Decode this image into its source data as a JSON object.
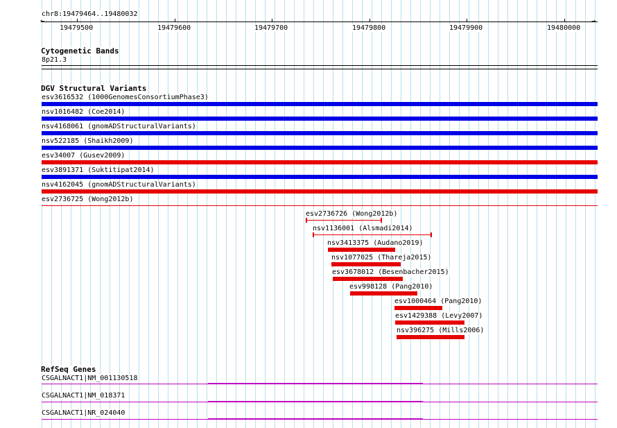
{
  "region": "chr8:19479464..19480032",
  "ruler": {
    "ticks": [
      "19479500",
      "19479600",
      "19479700",
      "19479800",
      "19479900",
      "19480000"
    ]
  },
  "cytoband": {
    "title": "Cytogenetic Bands",
    "band": "8p21.3"
  },
  "dgv": {
    "title": "DGV Structural Variants",
    "full_rows": [
      {
        "id": "esv3616532",
        "study": "(1000GenomesConsortiumPhase3)",
        "color": "#0000e6"
      },
      {
        "id": "nsv1016482",
        "study": "(Coe2014)",
        "color": "#0000e6"
      },
      {
        "id": "nsv4168061",
        "study": "(gnomADStructuralVariants)",
        "color": "#0000e6"
      },
      {
        "id": "nsv522185",
        "study": "(Shaikh2009)",
        "color": "#0000e6"
      },
      {
        "id": "esv34007",
        "study": "(Gusev2009)",
        "color": "#e60000"
      },
      {
        "id": "esv3891371",
        "study": "(Suktitipat2014)",
        "color": "#0000e6"
      },
      {
        "id": "nsv4162045",
        "study": "(gnomADStructuralVariants)",
        "color": "#e60000"
      },
      {
        "id": "esv2736725",
        "study": "(Wong2012b)",
        "color": "#e60000"
      }
    ],
    "partial_rows": [
      {
        "id": "esv2736726",
        "study": "(Wong2012b)",
        "color": "#e60000"
      },
      {
        "id": "nsv1136001",
        "study": "(Alsmadi2014)",
        "color": "#e60000"
      },
      {
        "id": "nsv3413375",
        "study": "(Audano2019)",
        "color": "#e60000"
      },
      {
        "id": "nsv1077025",
        "study": "(Thareja2015)",
        "color": "#e60000"
      },
      {
        "id": "esv3678012",
        "study": "(Besenbacher2015)",
        "color": "#e60000"
      },
      {
        "id": "esv998128",
        "study": "(Pang2010)",
        "color": "#e60000"
      },
      {
        "id": "esv1000464",
        "study": "(Pang2010)",
        "color": "#e60000"
      },
      {
        "id": "esv1429388",
        "study": "(Levy2007)",
        "color": "#e60000"
      },
      {
        "id": "nsv396275",
        "study": "(Mills2006)",
        "color": "#e60000"
      }
    ]
  },
  "refseq": {
    "title": "RefSeq Genes",
    "genes": [
      {
        "label": "CSGALNACT1|NM_001130518"
      },
      {
        "label": "CSGALNACT1|NM_018371"
      },
      {
        "label": "CSGALNACT1|NR_024040"
      }
    ],
    "color": "#c000c0"
  },
  "colors": {
    "grid": "#b7dff0",
    "gain": "#0000e6",
    "loss": "#e60000"
  }
}
